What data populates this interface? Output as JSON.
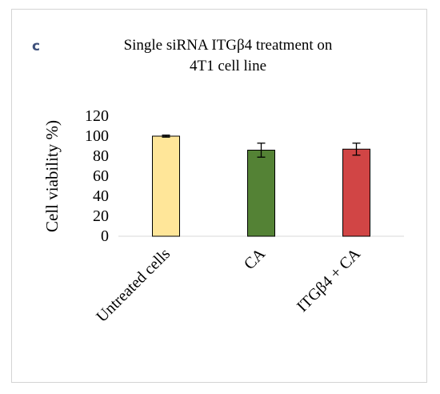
{
  "panel_label": "c",
  "chart_data": {
    "type": "bar",
    "title": "Single  siRNA ITGβ4 treatment  on\n4T1 cell line",
    "ylabel": "Cell  viability  %)",
    "xlabel": "",
    "categories": [
      "Untreated cells",
      "CA",
      "ITGβ4 + CA"
    ],
    "values": [
      100,
      86,
      87
    ],
    "errors": [
      1,
      7,
      6
    ],
    "colors": [
      "#ffe699",
      "#548235",
      "#d14545"
    ],
    "ylim": [
      0,
      120
    ],
    "yticks": [
      0,
      20,
      40,
      60,
      80,
      100,
      120
    ],
    "grid": false,
    "legend": "none"
  }
}
